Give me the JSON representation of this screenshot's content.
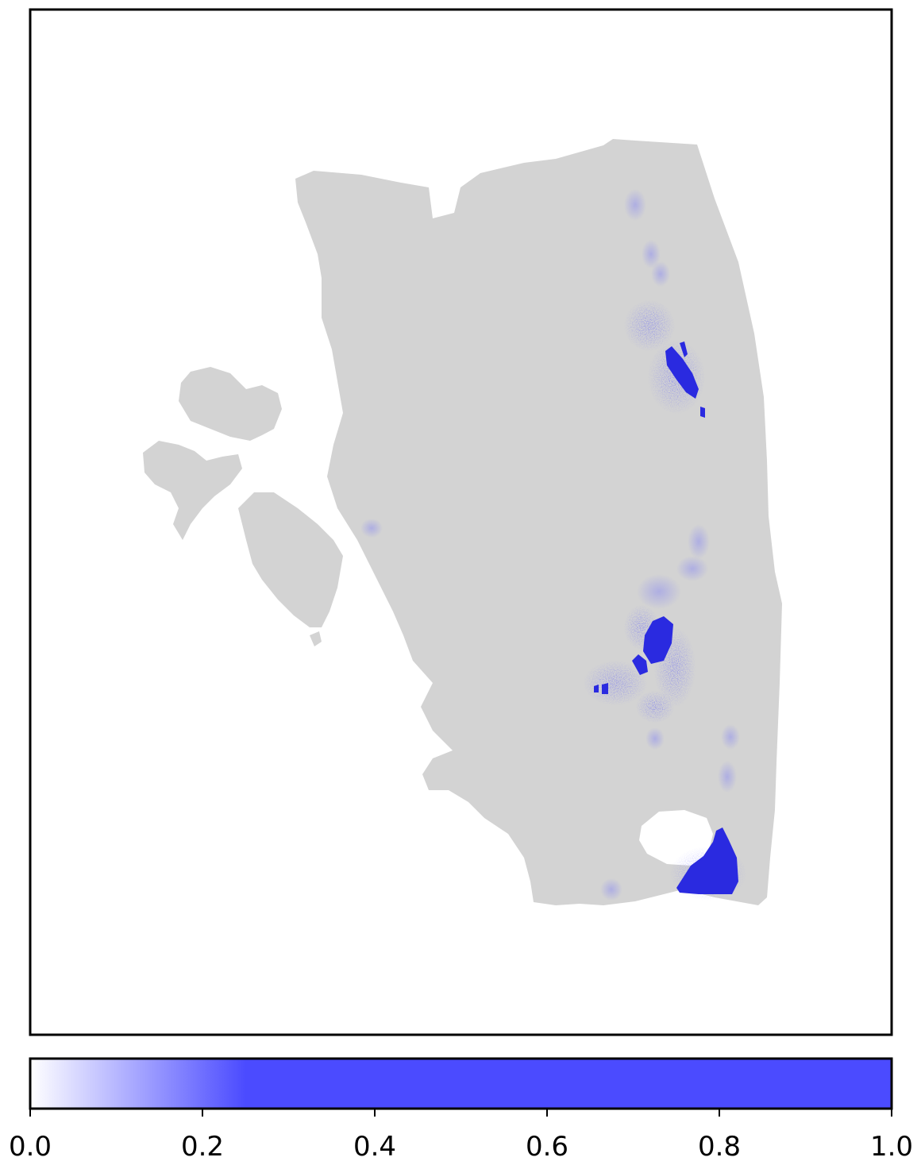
{
  "chart_data": {
    "type": "heatmap",
    "title": "",
    "xlabel": "",
    "ylabel": "",
    "axes_ticks": false,
    "tissue_color": "#d3d3d3",
    "colormap": {
      "name": "white-to-blue",
      "low_color": "#ffffff",
      "high_color": "#4b4bff",
      "saturation_value": 0.25,
      "range": [
        0,
        1
      ]
    },
    "colorbar": {
      "orientation": "horizontal",
      "placement": "bottom",
      "ticks": [
        0.0,
        0.2,
        0.4,
        0.6,
        0.8,
        1.0
      ],
      "tick_labels": [
        "0.0",
        "0.2",
        "0.4",
        "0.6",
        "0.8",
        "1.0"
      ]
    }
  }
}
